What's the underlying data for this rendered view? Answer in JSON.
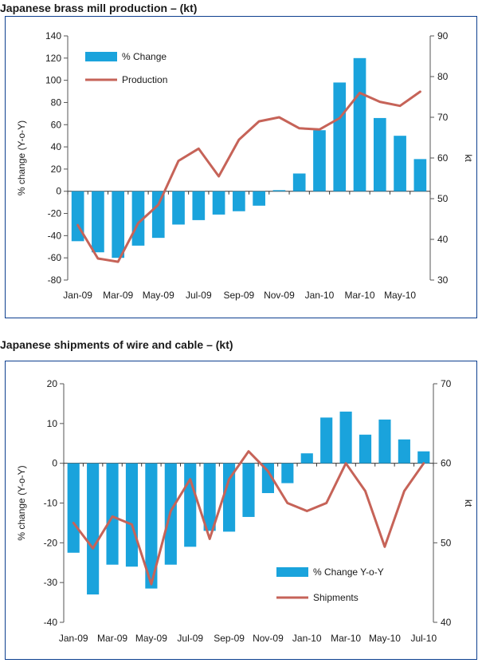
{
  "chart_data": [
    {
      "type": "bar+line",
      "title": "Japanese brass mill production – (kt)",
      "categories": [
        "Jan-09",
        "Feb-09",
        "Mar-09",
        "Apr-09",
        "May-09",
        "Jun-09",
        "Jul-09",
        "Aug-09",
        "Sep-09",
        "Oct-09",
        "Nov-09",
        "Dec-09",
        "Jan-10",
        "Feb-10",
        "Mar-10",
        "Apr-10",
        "May-10",
        "Jun-10"
      ],
      "x_tick_labels": [
        "Jan-09",
        "Mar-09",
        "May-09",
        "Jul-09",
        "Sep-09",
        "Nov-09",
        "Jan-10",
        "Mar-10",
        "May-10"
      ],
      "ylabel_left": "% change (Y-o-Y)",
      "ylabel_right": "kt",
      "ylim_left": [
        -80,
        140
      ],
      "yticks_left": [
        "140",
        "120",
        "100",
        "80",
        "60",
        "40",
        "20",
        "0",
        "-20",
        "-40",
        "-60",
        "-80"
      ],
      "ylim_right": [
        30,
        90
      ],
      "yticks_right": [
        "90",
        "80",
        "70",
        "60",
        "50",
        "40",
        "30"
      ],
      "legend_position": "top-left",
      "series": [
        {
          "name": "% Change",
          "kind": "bar",
          "axis": "left",
          "color": "#1aa3dc",
          "values": [
            -45,
            -55,
            -60,
            -49,
            -42,
            -30,
            -26,
            -21,
            -18,
            -13,
            1,
            16,
            55,
            98,
            120,
            66,
            50,
            29
          ]
        },
        {
          "name": "Production",
          "kind": "line",
          "axis": "right",
          "color": "#c66358",
          "values": [
            43.5,
            35.3,
            34.5,
            44,
            48.5,
            59.3,
            62.3,
            55.5,
            64.5,
            69,
            70,
            67.3,
            67,
            69.8,
            76,
            73.8,
            72.8,
            76.3
          ]
        }
      ]
    },
    {
      "type": "bar+line",
      "title": "Japanese shipments of wire and cable – (kt)",
      "categories": [
        "Jan-09",
        "Feb-09",
        "Mar-09",
        "Apr-09",
        "May-09",
        "Jun-09",
        "Jul-09",
        "Aug-09",
        "Sep-09",
        "Oct-09",
        "Nov-09",
        "Dec-09",
        "Jan-10",
        "Feb-10",
        "Mar-10",
        "Apr-10",
        "May-10",
        "Jun-10",
        "Jul-10"
      ],
      "x_tick_labels": [
        "Jan-09",
        "Mar-09",
        "May-09",
        "Jul-09",
        "Sep-09",
        "Nov-09",
        "Jan-10",
        "Mar-10",
        "May-10",
        "Jul-10"
      ],
      "ylabel_left": "% change (Y-o-Y)",
      "ylabel_right": "kt",
      "ylim_left": [
        -40,
        20
      ],
      "yticks_left": [
        "20",
        "10",
        "0",
        "-10",
        "-20",
        "-30",
        "-40"
      ],
      "ylim_right": [
        40,
        70
      ],
      "yticks_right": [
        "70",
        "60",
        "50",
        "40"
      ],
      "legend_position": "bottom-right",
      "series": [
        {
          "name": "% Change Y-o-Y",
          "kind": "bar",
          "axis": "left",
          "color": "#1aa3dc",
          "values": [
            -22.5,
            -33,
            -25.5,
            -26,
            -31.5,
            -25.5,
            -21,
            -17,
            -17.2,
            -13.5,
            -7.5,
            -5,
            2.5,
            11.5,
            13,
            7.2,
            11,
            6,
            3
          ]
        },
        {
          "name": "Shipments",
          "kind": "line",
          "axis": "right",
          "color": "#c66358",
          "values": [
            52.5,
            49.3,
            53.3,
            52.3,
            44.8,
            54,
            58,
            50.5,
            58,
            61.5,
            59,
            55,
            54,
            55,
            60,
            56.5,
            49.5,
            56.5,
            60
          ]
        }
      ]
    }
  ]
}
